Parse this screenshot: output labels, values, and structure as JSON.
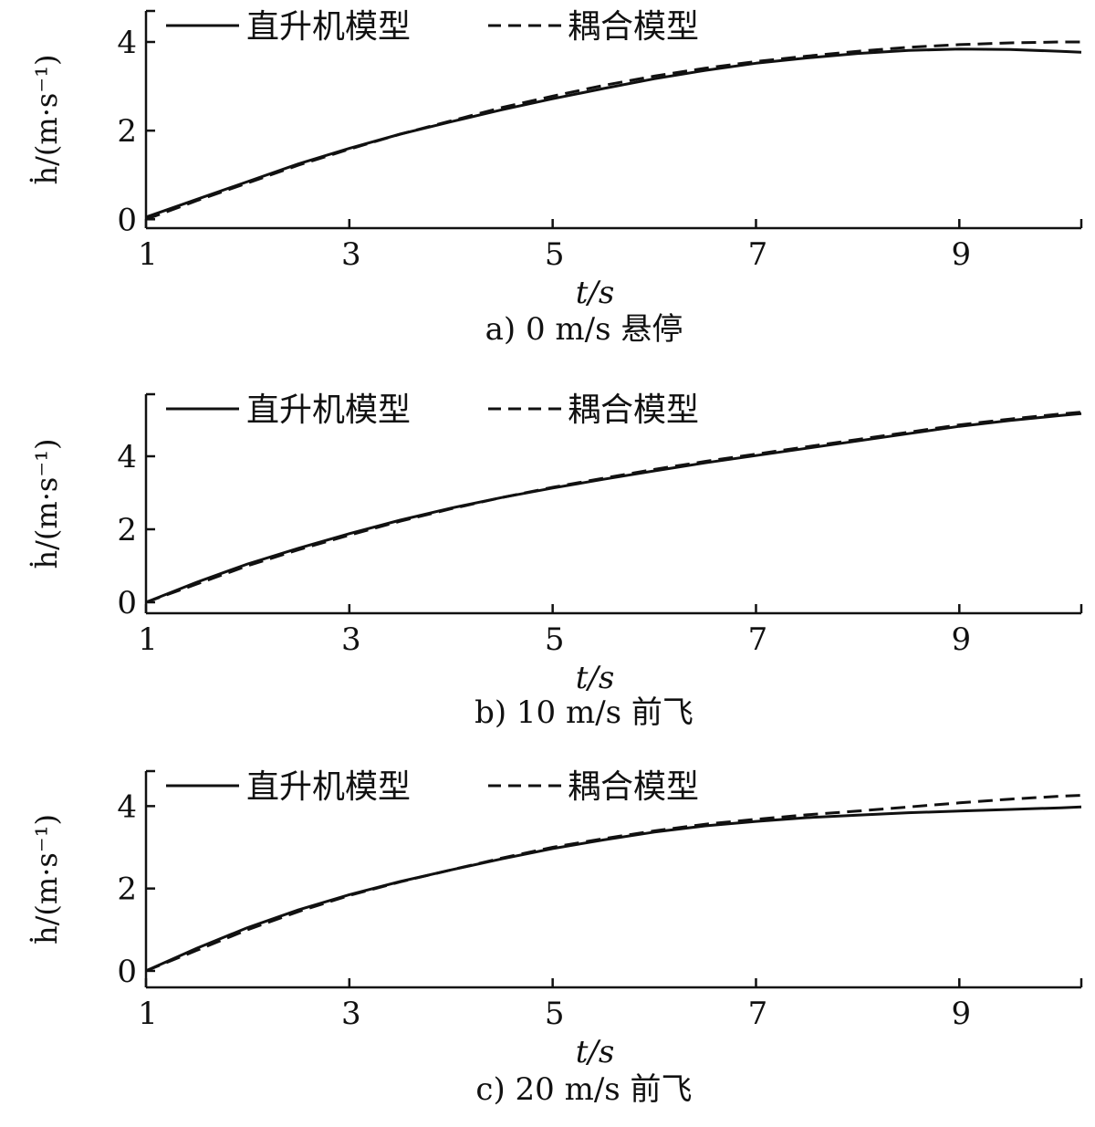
{
  "chart_data": [
    {
      "type": "line",
      "caption": "a)  0 m/s 悬停",
      "xlabel": "t/s",
      "ylabel": "ḣ/(m·s⁻¹)",
      "xlim": [
        1,
        10.2
      ],
      "ylim": [
        -0.2,
        4.7
      ],
      "xticks": [
        "1",
        "3",
        "5",
        "7",
        "9"
      ],
      "yticks": [
        "0",
        "2",
        "4"
      ],
      "legend": {
        "position": "top",
        "entries": [
          "直升机模型",
          "耦合模型"
        ]
      },
      "x": [
        1,
        1.5,
        2,
        2.5,
        3,
        3.5,
        4,
        4.5,
        5,
        5.5,
        6,
        6.5,
        7,
        7.5,
        8,
        8.5,
        9,
        9.5,
        10,
        10.2
      ],
      "series": [
        {
          "name": "直升机模型",
          "style": "solid",
          "values": [
            0.05,
            0.45,
            0.85,
            1.25,
            1.6,
            1.92,
            2.2,
            2.47,
            2.72,
            2.95,
            3.17,
            3.36,
            3.52,
            3.64,
            3.74,
            3.81,
            3.84,
            3.83,
            3.79,
            3.77
          ]
        },
        {
          "name": "耦合模型",
          "style": "dashed",
          "values": [
            0.0,
            0.42,
            0.82,
            1.22,
            1.58,
            1.92,
            2.22,
            2.52,
            2.78,
            3.02,
            3.23,
            3.41,
            3.56,
            3.68,
            3.79,
            3.88,
            3.94,
            3.98,
            4.0,
            4.0
          ]
        }
      ]
    },
    {
      "type": "line",
      "caption": "b)  10 m/s 前飞",
      "xlabel": "t/s",
      "ylabel": "ḣ/(m·s⁻¹)",
      "xlim": [
        1,
        10.2
      ],
      "ylim": [
        -0.3,
        5.7
      ],
      "xticks": [
        "1",
        "3",
        "5",
        "7",
        "9"
      ],
      "yticks": [
        "0",
        "2",
        "4"
      ],
      "legend": {
        "position": "top",
        "entries": [
          "直升机模型",
          "耦合模型"
        ]
      },
      "x": [
        1,
        1.5,
        2,
        2.5,
        3,
        3.5,
        4,
        4.5,
        5,
        5.5,
        6,
        6.5,
        7,
        7.5,
        8,
        8.5,
        9,
        9.5,
        10,
        10.2
      ],
      "series": [
        {
          "name": "直升机模型",
          "style": "solid",
          "values": [
            0.0,
            0.55,
            1.05,
            1.48,
            1.88,
            2.25,
            2.58,
            2.87,
            3.13,
            3.37,
            3.6,
            3.82,
            4.02,
            4.22,
            4.42,
            4.62,
            4.82,
            4.98,
            5.12,
            5.17
          ]
        },
        {
          "name": "耦合模型",
          "style": "dashed",
          "values": [
            0.0,
            0.5,
            1.0,
            1.44,
            1.84,
            2.22,
            2.56,
            2.87,
            3.15,
            3.4,
            3.64,
            3.86,
            4.06,
            4.26,
            4.46,
            4.66,
            4.86,
            5.02,
            5.16,
            5.21
          ]
        }
      ]
    },
    {
      "type": "line",
      "caption": "c)  20 m/s 前飞",
      "xlabel": "t/s",
      "ylabel": "ḣ/(m·s⁻¹)",
      "xlim": [
        1,
        10.2
      ],
      "ylim": [
        -0.4,
        4.85
      ],
      "xticks": [
        "1",
        "3",
        "5",
        "7",
        "9"
      ],
      "yticks": [
        "0",
        "2",
        "4"
      ],
      "legend": {
        "position": "top",
        "entries": [
          "直升机模型",
          "耦合模型"
        ]
      },
      "x": [
        1,
        1.5,
        2,
        2.5,
        3,
        3.5,
        4,
        4.5,
        5,
        5.5,
        6,
        6.5,
        7,
        7.5,
        8,
        8.5,
        9,
        9.5,
        10,
        10.2
      ],
      "series": [
        {
          "name": "直升机模型",
          "style": "solid",
          "values": [
            0.0,
            0.55,
            1.05,
            1.48,
            1.85,
            2.17,
            2.45,
            2.72,
            2.97,
            3.18,
            3.37,
            3.52,
            3.63,
            3.72,
            3.78,
            3.84,
            3.88,
            3.92,
            3.96,
            3.98
          ]
        },
        {
          "name": "耦合模型",
          "style": "dashed",
          "values": [
            0.0,
            0.5,
            1.0,
            1.44,
            1.83,
            2.16,
            2.45,
            2.74,
            3.0,
            3.21,
            3.4,
            3.56,
            3.68,
            3.79,
            3.88,
            3.98,
            4.08,
            4.17,
            4.24,
            4.26
          ]
        }
      ]
    }
  ]
}
